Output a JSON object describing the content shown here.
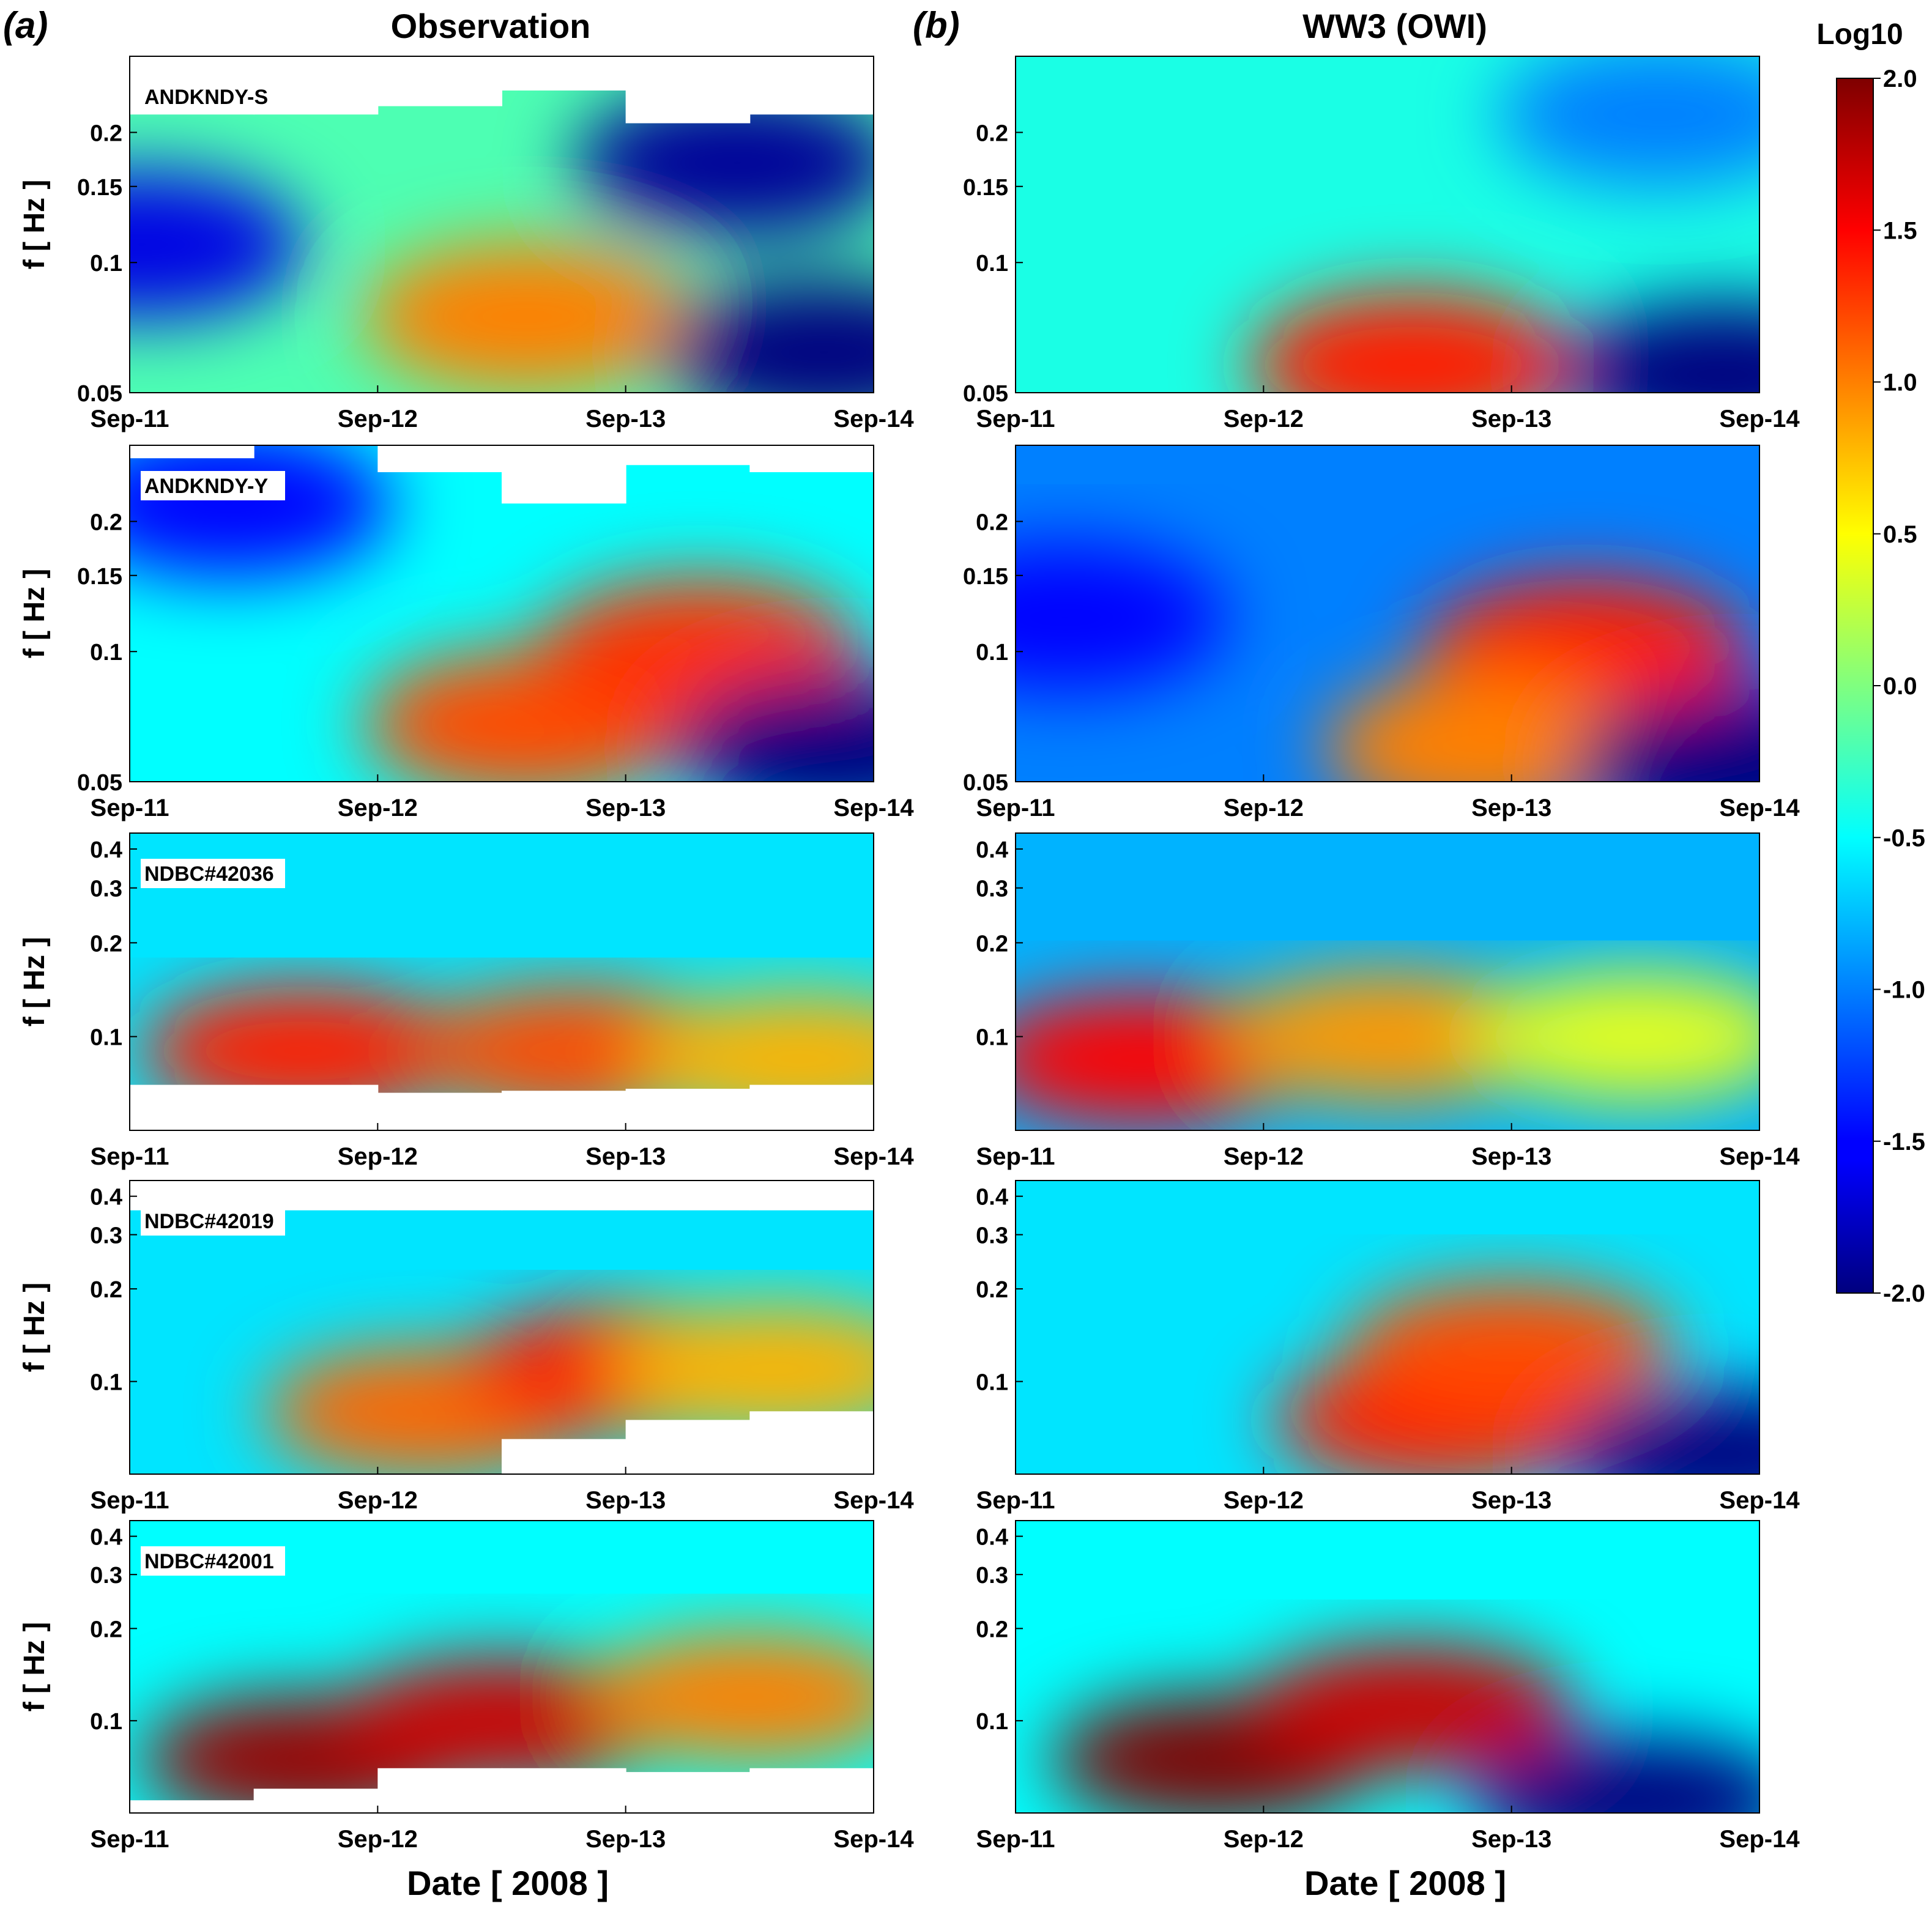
{
  "figure": {
    "panel_a_label": "(a)",
    "panel_b_label": "(b)",
    "col_a_title": "Observation",
    "col_b_title": "WW3 (OWI)",
    "xlabel": "Date [ 2008 ]",
    "ylabel": "f [ Hz ]",
    "colorbar_title": "Log10"
  },
  "chart_data": [
    {
      "type": "heatmap",
      "kind": "spectrogram",
      "column": "Observation",
      "station": "ANDKNDY-S",
      "xlabel": "",
      "ylabel": "f [ Hz ]",
      "x_ticks": [
        "Sep-11",
        "Sep-12",
        "Sep-13",
        "Sep-14"
      ],
      "y_scale": "log",
      "y_ticks": [
        0.05,
        0.1,
        0.15,
        0.2
      ],
      "y_tick_labels": [
        "0.05",
        "0.1",
        "0.15",
        "0.2"
      ],
      "ylim": [
        0.05,
        0.3
      ],
      "data_top": [
        0.22,
        0.22,
        0.23,
        0.25,
        0.21,
        0.22
      ],
      "blobs": [
        {
          "day": 1.6,
          "freq": 0.075,
          "value": 1.0
        },
        {
          "day": 2.45,
          "freq": 0.17,
          "value": -1.9
        },
        {
          "day": 2.8,
          "freq": 0.062,
          "value": -2.0
        },
        {
          "day": 0.05,
          "freq": 0.11,
          "value": -1.6
        }
      ],
      "background": -0.2
    },
    {
      "type": "heatmap",
      "kind": "spectrogram",
      "column": "Observation",
      "station": "ANDKNDY-Y",
      "xlabel": "",
      "ylabel": "f [ Hz ]",
      "x_ticks": [
        "Sep-11",
        "Sep-12",
        "Sep-13",
        "Sep-14"
      ],
      "y_scale": "log",
      "y_ticks": [
        0.05,
        0.1,
        0.15,
        0.2
      ],
      "y_tick_labels": [
        "0.05",
        "0.1",
        "0.15",
        "0.2"
      ],
      "ylim": [
        0.05,
        0.3
      ],
      "data_top": [
        0.28,
        0.3,
        0.26,
        0.22,
        0.27,
        0.26
      ],
      "blobs": [
        {
          "day": 1.6,
          "freq": 0.068,
          "value": 1.2
        },
        {
          "day": 2.3,
          "freq": 0.1,
          "value": 1.3
        },
        {
          "day": 2.85,
          "freq": 0.06,
          "value": -2.0
        },
        {
          "day": 0.4,
          "freq": 0.22,
          "value": -1.5
        }
      ],
      "background": -0.5
    },
    {
      "type": "heatmap",
      "kind": "spectrogram",
      "column": "Observation",
      "station": "NDBC#42036",
      "xlabel": "",
      "ylabel": "f [ Hz ]",
      "x_ticks": [
        "Sep-11",
        "Sep-12",
        "Sep-13",
        "Sep-14"
      ],
      "y_scale": "log",
      "y_ticks": [
        0.1,
        0.2,
        0.3,
        0.4
      ],
      "y_tick_labels": [
        "0.1",
        "0.2",
        "0.3",
        "0.4"
      ],
      "ylim": [
        0.05,
        0.45
      ],
      "data_bottom": [
        0.07,
        0.07,
        0.066,
        0.067,
        0.068,
        0.07
      ],
      "blobs": [
        {
          "day": 0.7,
          "freq": 0.09,
          "value": 1.4
        },
        {
          "day": 1.8,
          "freq": 0.09,
          "value": 1.2
        },
        {
          "day": 2.7,
          "freq": 0.085,
          "value": 0.8
        }
      ],
      "background": -0.6
    },
    {
      "type": "heatmap",
      "kind": "spectrogram",
      "column": "Observation",
      "station": "NDBC#42019",
      "xlabel": "",
      "ylabel": "f [ Hz ]",
      "x_ticks": [
        "Sep-11",
        "Sep-12",
        "Sep-13",
        "Sep-14"
      ],
      "y_scale": "log",
      "y_ticks": [
        0.1,
        0.2,
        0.3,
        0.4
      ],
      "y_tick_labels": [
        "0.1",
        "0.2",
        "0.3",
        "0.4"
      ],
      "ylim": [
        0.05,
        0.45
      ],
      "data_top": [
        0.36,
        0.36,
        0.36,
        0.36,
        0.36,
        0.36
      ],
      "data_bottom": [
        0.05,
        0.05,
        0.05,
        0.065,
        0.075,
        0.08
      ],
      "blobs": [
        {
          "day": 1.2,
          "freq": 0.08,
          "value": 1.1
        },
        {
          "day": 2.0,
          "freq": 0.11,
          "value": 1.4
        },
        {
          "day": 2.6,
          "freq": 0.11,
          "value": 0.8
        }
      ],
      "background": -0.6
    },
    {
      "type": "heatmap",
      "kind": "spectrogram",
      "column": "Observation",
      "station": "NDBC#42001",
      "xlabel": "Date [ 2008 ]",
      "ylabel": "f [ Hz ]",
      "x_ticks": [
        "Sep-11",
        "Sep-12",
        "Sep-13",
        "Sep-14"
      ],
      "y_scale": "log",
      "y_ticks": [
        0.1,
        0.2,
        0.3,
        0.4
      ],
      "y_tick_labels": [
        "0.1",
        "0.2",
        "0.3",
        "0.4"
      ],
      "ylim": [
        0.05,
        0.45
      ],
      "data_bottom": [
        0.055,
        0.06,
        0.07,
        0.07,
        0.068,
        0.07
      ],
      "blobs": [
        {
          "day": 0.7,
          "freq": 0.075,
          "value": 1.9
        },
        {
          "day": 1.5,
          "freq": 0.1,
          "value": 1.7
        },
        {
          "day": 2.5,
          "freq": 0.12,
          "value": 1.0
        }
      ],
      "background": -0.5
    },
    {
      "type": "heatmap",
      "kind": "spectrogram",
      "column": "WW3 (OWI)",
      "station": "",
      "xlabel": "",
      "ylabel": "",
      "x_ticks": [
        "Sep-11",
        "Sep-12",
        "Sep-13",
        "Sep-14"
      ],
      "y_scale": "log",
      "y_ticks": [
        0.05,
        0.1,
        0.15,
        0.2
      ],
      "y_tick_labels": [
        "0.05",
        "0.1",
        "0.15",
        "0.2"
      ],
      "ylim": [
        0.05,
        0.3
      ],
      "blobs": [
        {
          "day": 1.6,
          "freq": 0.058,
          "value": 1.4
        },
        {
          "day": 2.85,
          "freq": 0.055,
          "value": -2.0
        },
        {
          "day": 2.6,
          "freq": 0.22,
          "value": -1.0
        }
      ],
      "background": -0.4
    },
    {
      "type": "heatmap",
      "kind": "spectrogram",
      "column": "WW3 (OWI)",
      "station": "",
      "xlabel": "",
      "ylabel": "",
      "x_ticks": [
        "Sep-11",
        "Sep-12",
        "Sep-13",
        "Sep-14"
      ],
      "y_scale": "log",
      "y_ticks": [
        0.05,
        0.1,
        0.15,
        0.2
      ],
      "y_tick_labels": [
        "0.05",
        "0.1",
        "0.15",
        "0.2"
      ],
      "ylim": [
        0.05,
        0.3
      ],
      "blobs": [
        {
          "day": 2.3,
          "freq": 0.1,
          "value": 1.4
        },
        {
          "day": 1.9,
          "freq": 0.06,
          "value": 1.0
        },
        {
          "day": 2.9,
          "freq": 0.055,
          "value": -2.0
        },
        {
          "day": 0.2,
          "freq": 0.12,
          "value": -1.5
        }
      ],
      "background": -1.0
    },
    {
      "type": "heatmap",
      "kind": "spectrogram",
      "column": "WW3 (OWI)",
      "station": "",
      "xlabel": "",
      "ylabel": "",
      "x_ticks": [
        "Sep-11",
        "Sep-12",
        "Sep-13",
        "Sep-14"
      ],
      "y_scale": "log",
      "y_ticks": [
        0.1,
        0.2,
        0.3,
        0.4
      ],
      "y_tick_labels": [
        "0.1",
        "0.2",
        "0.3",
        "0.4"
      ],
      "ylim": [
        0.05,
        0.45
      ],
      "blobs": [
        {
          "day": 0.5,
          "freq": 0.085,
          "value": 1.5
        },
        {
          "day": 1.5,
          "freq": 0.1,
          "value": 0.9
        },
        {
          "day": 2.5,
          "freq": 0.1,
          "value": 0.4
        }
      ],
      "background": -0.8
    },
    {
      "type": "heatmap",
      "kind": "spectrogram",
      "column": "WW3 (OWI)",
      "station": "",
      "xlabel": "",
      "ylabel": "",
      "x_ticks": [
        "Sep-11",
        "Sep-12",
        "Sep-13",
        "Sep-14"
      ],
      "y_scale": "log",
      "y_ticks": [
        0.1,
        0.2,
        0.3,
        0.4
      ],
      "y_tick_labels": [
        "0.1",
        "0.2",
        "0.3",
        "0.4"
      ],
      "ylim": [
        0.05,
        0.45
      ],
      "blobs": [
        {
          "day": 1.7,
          "freq": 0.075,
          "value": 1.4
        },
        {
          "day": 2.0,
          "freq": 0.13,
          "value": 1.2
        },
        {
          "day": 2.85,
          "freq": 0.058,
          "value": -2.0
        }
      ],
      "background": -0.6
    },
    {
      "type": "heatmap",
      "kind": "spectrogram",
      "column": "WW3 (OWI)",
      "station": "",
      "xlabel": "Date [ 2008 ]",
      "ylabel": "",
      "x_ticks": [
        "Sep-11",
        "Sep-12",
        "Sep-13",
        "Sep-14"
      ],
      "y_scale": "log",
      "y_ticks": [
        0.1,
        0.2,
        0.3,
        0.4
      ],
      "y_tick_labels": [
        "0.1",
        "0.2",
        "0.3",
        "0.4"
      ],
      "ylim": [
        0.05,
        0.45
      ],
      "blobs": [
        {
          "day": 0.8,
          "freq": 0.075,
          "value": 2.0
        },
        {
          "day": 1.6,
          "freq": 0.11,
          "value": 1.7
        },
        {
          "day": 2.5,
          "freq": 0.055,
          "value": -2.0
        }
      ],
      "background": -0.5
    },
    {
      "type": "colorbar",
      "title": "Log10",
      "colormap": "jet",
      "range": [
        -2.0,
        2.0
      ],
      "ticks": [
        2.0,
        1.5,
        1.0,
        0.5,
        0.0,
        -0.5,
        -1.0,
        -1.5,
        -2.0
      ],
      "tick_labels": [
        "2.0",
        "1.5",
        "1.0",
        "0.5",
        "0.0",
        "-0.5",
        "-1.0",
        "-1.5",
        "-2.0"
      ]
    }
  ]
}
